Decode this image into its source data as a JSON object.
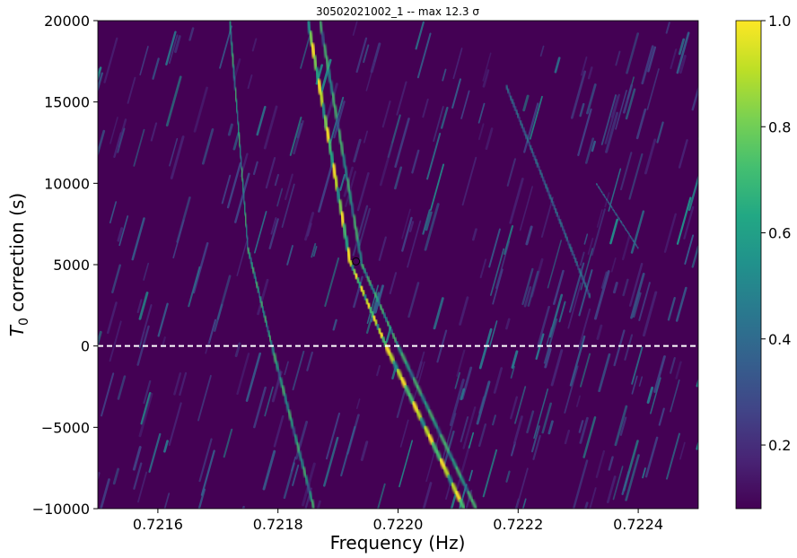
{
  "chart_data": {
    "type": "heatmap",
    "title": "30502021002_1 -- max 12.3 σ",
    "xlabel": "Frequency (Hz)",
    "ylabel_main": "T",
    "ylabel_sub": "0",
    "ylabel_rest": " correction (s)",
    "xlim": [
      0.7215,
      0.7225
    ],
    "ylim": [
      -10000,
      20000
    ],
    "x_ticks": [
      0.7216,
      0.7218,
      0.722,
      0.7222,
      0.7224
    ],
    "x_tick_labels": [
      "0.7216",
      "0.7218",
      "0.7220",
      "0.7222",
      "0.7224"
    ],
    "y_ticks": [
      -10000,
      -5000,
      0,
      5000,
      10000,
      15000,
      20000
    ],
    "y_tick_labels": [
      "−10000",
      "−5000",
      "0",
      "5000",
      "10000",
      "15000",
      "20000"
    ],
    "colorbar": {
      "colormap": "viridis",
      "range": [
        0.08,
        1.0
      ],
      "ticks": [
        0.2,
        0.4,
        0.6,
        0.8,
        1.0
      ],
      "tick_labels": [
        "0.2",
        "0.4",
        "0.6",
        "0.8",
        "1.0"
      ]
    },
    "background_color": "#440154",
    "reference_line": {
      "y": 0,
      "style": "dashed",
      "color": "#ffffff"
    },
    "max_marker": {
      "x": 0.72193,
      "y": 5200
    },
    "ridges": [
      {
        "name": "main",
        "points": [
          [
            0.72185,
            20000
          ],
          [
            0.72192,
            5200
          ],
          [
            0.72198,
            0
          ],
          [
            0.72211,
            -10000
          ]
        ],
        "peak": 1.0
      },
      {
        "name": "main-echo",
        "points": [
          [
            0.72187,
            20000
          ],
          [
            0.72194,
            5000
          ],
          [
            0.722,
            0
          ],
          [
            0.72213,
            -10000
          ]
        ],
        "peak": 0.75
      },
      {
        "name": "secondary",
        "points": [
          [
            0.72172,
            20000
          ],
          [
            0.72175,
            6000
          ],
          [
            0.72179,
            0
          ],
          [
            0.72186,
            -10000
          ]
        ],
        "peak": 0.7
      },
      {
        "name": "faint-1",
        "points": [
          [
            0.72218,
            16000
          ],
          [
            0.72232,
            3000
          ]
        ],
        "peak": 0.45
      },
      {
        "name": "faint-2",
        "points": [
          [
            0.72233,
            10000
          ],
          [
            0.7224,
            6000
          ]
        ],
        "peak": 0.45
      }
    ]
  }
}
